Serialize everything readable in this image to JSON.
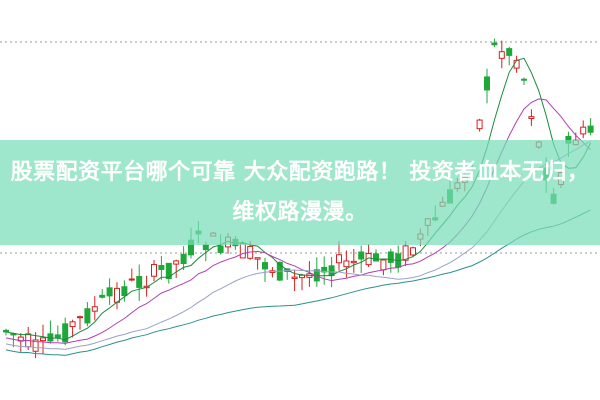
{
  "article": {
    "title": "股票配资平台哪个可靠 大众配资跑路！ 投资者血本无归，维权路漫漫。"
  },
  "colors": {
    "up_candle": "#d42020",
    "down_candle": "#1fa83a",
    "banner": "#8fe0c4",
    "ma_lines": [
      "#1a8a3a",
      "#b040b0",
      "#9aa0c8",
      "#2e8f8f"
    ]
  }
}
